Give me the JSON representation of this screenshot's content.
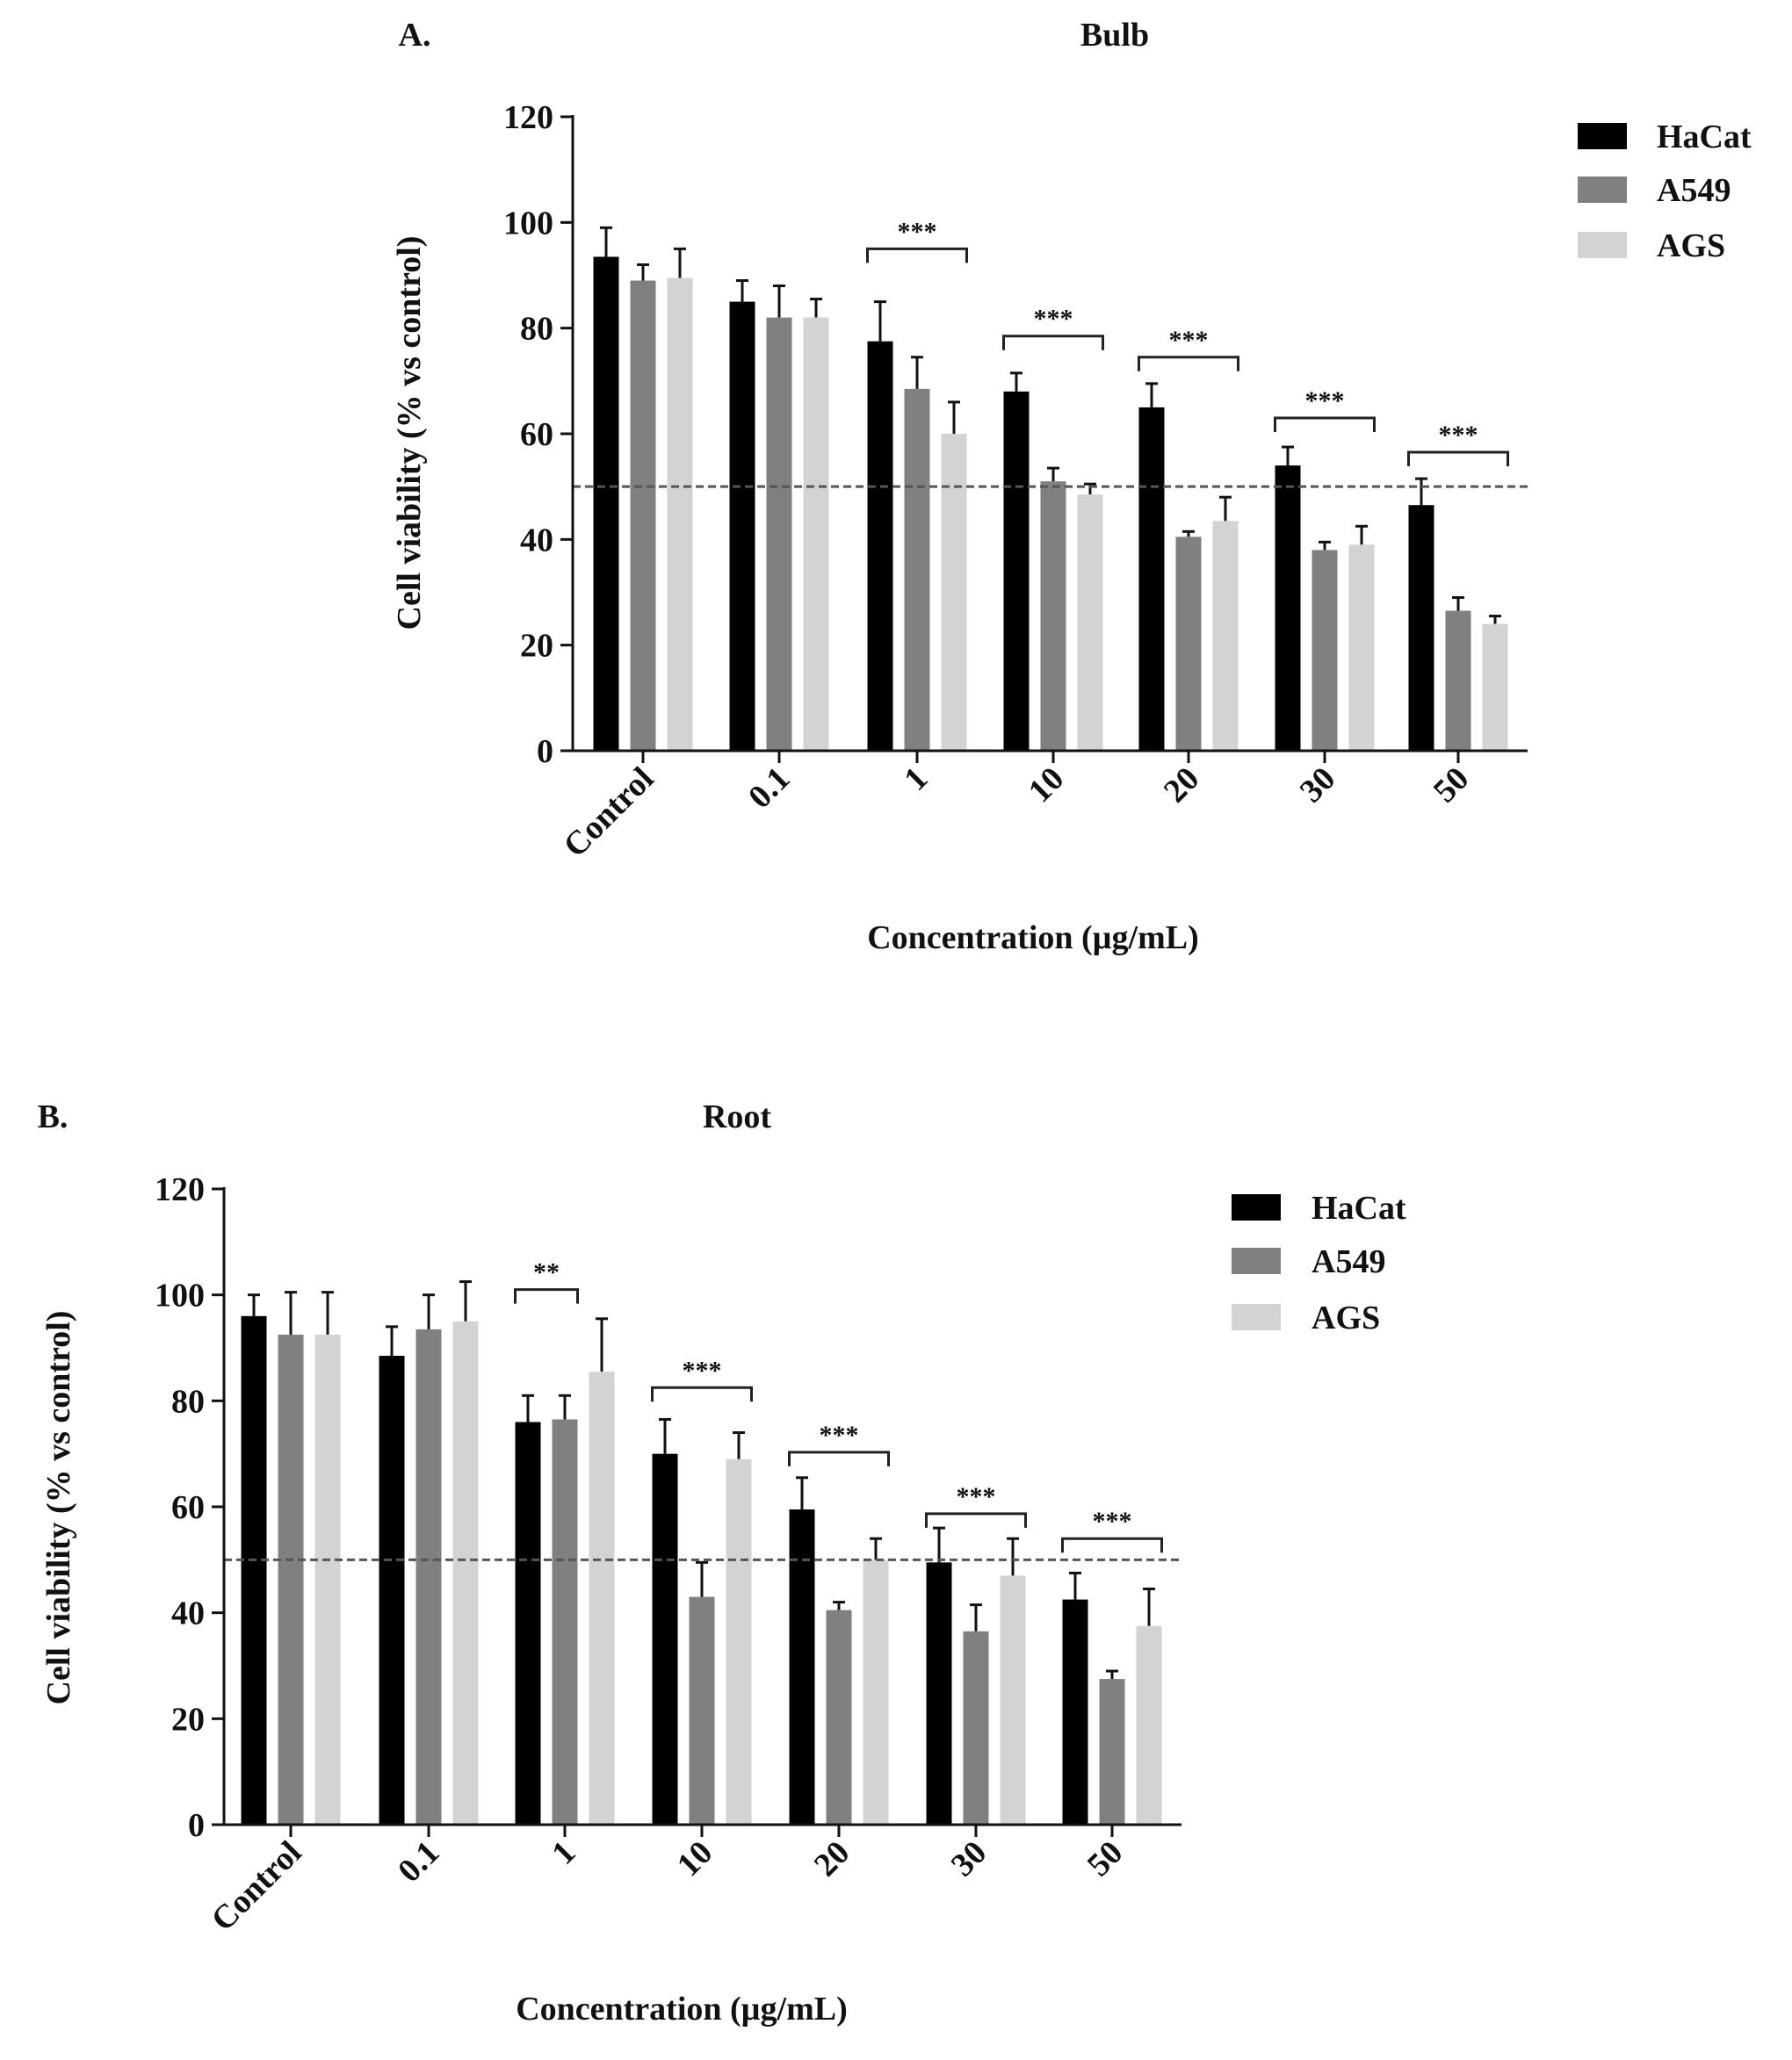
{
  "colors": {
    "HaCat": "#000000",
    "A549": "#808080",
    "AGS": "#d3d3d3"
  },
  "chart_data": [
    {
      "type": "bar",
      "panel_label": "A.",
      "title": "Bulb",
      "xlabel": "Concentration (µg/mL)",
      "ylabel": "Cell viability (% vs control)",
      "ylim": [
        0,
        120
      ],
      "yticks": [
        0,
        20,
        40,
        60,
        80,
        100,
        120
      ],
      "reference_line": 50,
      "legend_position": "top-right",
      "categories": [
        "Control",
        "0.1",
        "1",
        "10",
        "20",
        "30",
        "50"
      ],
      "series": [
        {
          "name": "HaCat",
          "values": [
            93.5,
            85,
            77.5,
            68,
            65,
            54,
            46.5
          ],
          "errors": [
            5.5,
            4,
            7.5,
            3.5,
            4.5,
            3.5,
            5
          ]
        },
        {
          "name": "A549",
          "values": [
            89,
            82,
            68.5,
            51,
            40.5,
            38,
            26.5
          ],
          "errors": [
            3,
            6,
            6,
            2.5,
            1,
            1.5,
            2.5
          ]
        },
        {
          "name": "AGS",
          "values": [
            89.5,
            82,
            60,
            48.5,
            43.5,
            39,
            24
          ],
          "errors": [
            5.5,
            3.5,
            6,
            2,
            4.5,
            3.5,
            1.5
          ]
        }
      ],
      "significance": [
        {
          "category": "1",
          "label": "***",
          "from": "HaCat",
          "to": "AGS",
          "y": 95
        },
        {
          "category": "10",
          "label": "***",
          "from": "HaCat",
          "to": "AGS",
          "y": 78.5
        },
        {
          "category": "20",
          "label": "***",
          "from": "HaCat",
          "to": "AGS",
          "y": 74.5
        },
        {
          "category": "30",
          "label": "***",
          "from": "HaCat",
          "to": "AGS",
          "y": 63
        },
        {
          "category": "50",
          "label": "***",
          "from": "HaCat",
          "to": "AGS",
          "y": 56.5
        }
      ]
    },
    {
      "type": "bar",
      "panel_label": "B.",
      "title": "Root",
      "xlabel": "Concentration (µg/mL)",
      "ylabel": "Cell viability (% vs control)",
      "ylim": [
        0,
        120
      ],
      "yticks": [
        0,
        20,
        40,
        60,
        80,
        100,
        120
      ],
      "reference_line": 50,
      "legend_position": "top-right",
      "categories": [
        "Control",
        "0.1",
        "1",
        "10",
        "20",
        "30",
        "50"
      ],
      "series": [
        {
          "name": "HaCat",
          "values": [
            96,
            88.5,
            76,
            70,
            59.5,
            49.5,
            42.5
          ],
          "errors": [
            4,
            5.5,
            5,
            6.5,
            6,
            6.5,
            5
          ]
        },
        {
          "name": "A549",
          "values": [
            92.5,
            93.5,
            76.5,
            43,
            40.5,
            36.5,
            27.5
          ],
          "errors": [
            8,
            6.5,
            4.5,
            6.5,
            1.5,
            5,
            1.5
          ]
        },
        {
          "name": "AGS",
          "values": [
            92.5,
            95,
            85.5,
            69,
            50,
            47,
            37.5
          ],
          "errors": [
            8,
            7.5,
            10,
            5,
            4,
            7,
            7
          ]
        }
      ],
      "significance": [
        {
          "category": "1",
          "label": "**",
          "from": "HaCat",
          "to": "A549",
          "y": 101
        },
        {
          "category": "10",
          "label": "***",
          "from": "HaCat",
          "to": "AGS",
          "y": 82.5
        },
        {
          "category": "20",
          "label": "***",
          "from": "HaCat",
          "to": "AGS",
          "y": 70.3
        },
        {
          "category": "30",
          "label": "***",
          "from": "HaCat",
          "to": "AGS",
          "y": 58.7
        },
        {
          "category": "50",
          "label": "***",
          "from": "HaCat",
          "to": "AGS",
          "y": 54
        }
      ]
    }
  ]
}
